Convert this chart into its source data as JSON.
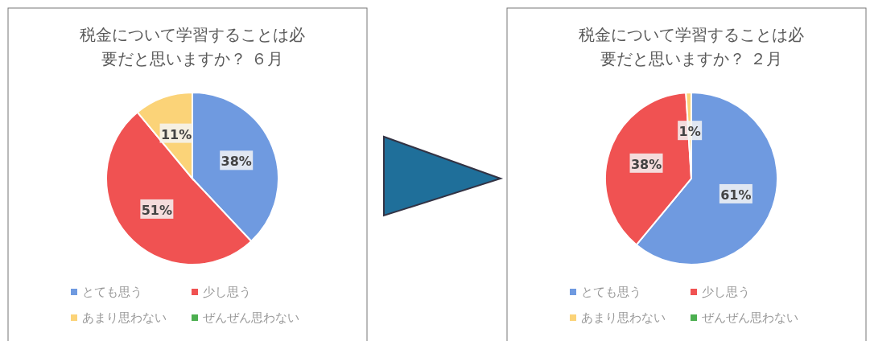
{
  "chart_data": [
    {
      "type": "pie",
      "title": "税金について学習することは必要だと思いますか？ ６月",
      "categories": [
        "とても思う",
        "少し思う",
        "あまり思わない",
        "ぜんぜん思わない"
      ],
      "values": [
        38,
        51,
        11,
        0
      ],
      "colors": [
        "#6f9ae0",
        "#f05252",
        "#fbd378",
        "#4caf50"
      ],
      "value_labels": [
        "38%",
        "51%",
        "11%",
        null
      ],
      "legend": "bottom"
    },
    {
      "type": "pie",
      "title": "税金について学習することは必要だと思いますか？ ２月",
      "categories": [
        "とても思う",
        "少し思う",
        "あまり思わない",
        "ぜんぜん思わない"
      ],
      "values": [
        61,
        38,
        1,
        0
      ],
      "colors": [
        "#6f9ae0",
        "#f05252",
        "#fbd378",
        "#4caf50"
      ],
      "value_labels": [
        "61%",
        "38%",
        "1%",
        null
      ],
      "legend": "bottom"
    }
  ]
}
